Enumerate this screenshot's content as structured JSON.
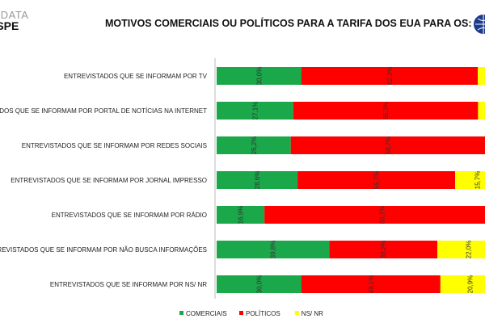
{
  "header": {
    "logo_line1": "G DATA",
    "logo_line2": "ESPE",
    "title": "MOTIVOS COMERCIAIS OU POLÍTICOS PARA A TARIFA DOS EUA PARA OS:"
  },
  "chart_data": {
    "type": "bar",
    "orientation": "horizontal",
    "stacked": true,
    "title": "MOTIVOS COMERCIAIS OU POLÍTICOS PARA A TARIFA DOS EUA PARA OS:",
    "categories": [
      "ENTREVISTADOS QUE SE INFORMAM POR TV",
      "ENTREVISTADOS QUE SE INFORMAM POR PORTAL DE NOTÍCIAS NA INTERNET",
      "ENTREVISTADOS QUE SE INFORMAM POR REDES SOCIAIS",
      "ENTREVISTADOS QUE SE INFORMAM POR JORNAL IMPRESSO",
      "ENTREVISTADOS QUE SE INFORMAM POR RÁDIO",
      "ENTREVISTADOS QUE SE INFORMAM POR NÃO BUSCA INFORMAÇÕES",
      "ENTREVISTADOS QUE SE INFORMAM POR NS/ NR"
    ],
    "series": [
      {
        "name": "COMERCIAIS",
        "color": "#1aa84a",
        "values": [
          30.0,
          27.1,
          26.2,
          28.6,
          16.9,
          39.8,
          30.0
        ],
        "labels": [
          "30,0%",
          "27,1%",
          "26,2%",
          "28,6%",
          "16,9%",
          "39,8%",
          "30,0%"
        ]
      },
      {
        "name": "POLÍTICOS",
        "color": "#ff0000",
        "values": [
          62.3,
          65.3,
          68.7,
          55.7,
          83.1,
          38.2,
          49.1
        ],
        "labels": [
          "62,3%",
          "65,3%",
          "68,7%",
          "55,7%",
          "83,1%",
          "38,2%",
          "49,1%"
        ]
      },
      {
        "name": "NS/ NR",
        "color": "#ffff00",
        "values": [
          7.7,
          7.6,
          5.1,
          15.7,
          0,
          22.0,
          20.9
        ],
        "labels": [
          "",
          "",
          "",
          "15,7%",
          "",
          "22,0%",
          "20,9%"
        ]
      }
    ],
    "xlim": [
      0,
      100
    ],
    "grid": false,
    "legend": "bottom"
  }
}
